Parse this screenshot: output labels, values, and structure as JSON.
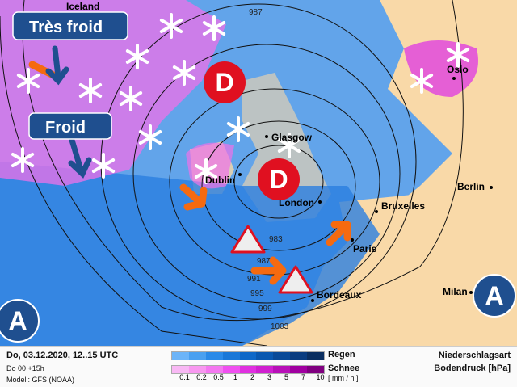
{
  "map": {
    "cities": [
      "Iceland",
      "Oslo",
      "Glasgow",
      "Dublin",
      "London",
      "Bruxelles",
      "Paris",
      "Bordeaux",
      "Berlin",
      "Milan"
    ],
    "labels": {
      "very_cold": "Très froid",
      "cold": "Froid"
    },
    "pressure_systems": {
      "low": "D",
      "high": "A"
    },
    "isobars": [
      "987",
      "983",
      "987",
      "991",
      "995",
      "999",
      "1003"
    ],
    "colors": {
      "ocean": "#4f97e6",
      "land": "#f9d9a8",
      "snow": "#f070e8",
      "low": "#e01020",
      "high": "#1f4f8f",
      "arrow": "#f56a10"
    }
  },
  "legend": {
    "date": "Do, 03.12.2020, 12..15 UTC",
    "run": "Do 00 +15h",
    "model": "Modell: GFS (NOAA)",
    "rain_label": "Regen",
    "snow_label": "Schnee",
    "unit": "[ mm / h ]",
    "ticks": [
      "0.1",
      "0.2",
      "0.5",
      "1",
      "2",
      "3",
      "5",
      "7",
      "10"
    ],
    "title1": "Niederschlagsart",
    "title2": "Bodendruck [hPa]",
    "rain_colors": [
      "#6cb4f8",
      "#4aa0f0",
      "#2a8ae8",
      "#1a78d8",
      "#0f68c8",
      "#0a58b0",
      "#0a4a98",
      "#0a3c80",
      "#0a2e60"
    ],
    "snow_colors": [
      "#f8b8f4",
      "#f898f0",
      "#f478f0",
      "#f050f0",
      "#e030e0",
      "#d020d0",
      "#b810b8",
      "#a000a0",
      "#800080"
    ]
  }
}
